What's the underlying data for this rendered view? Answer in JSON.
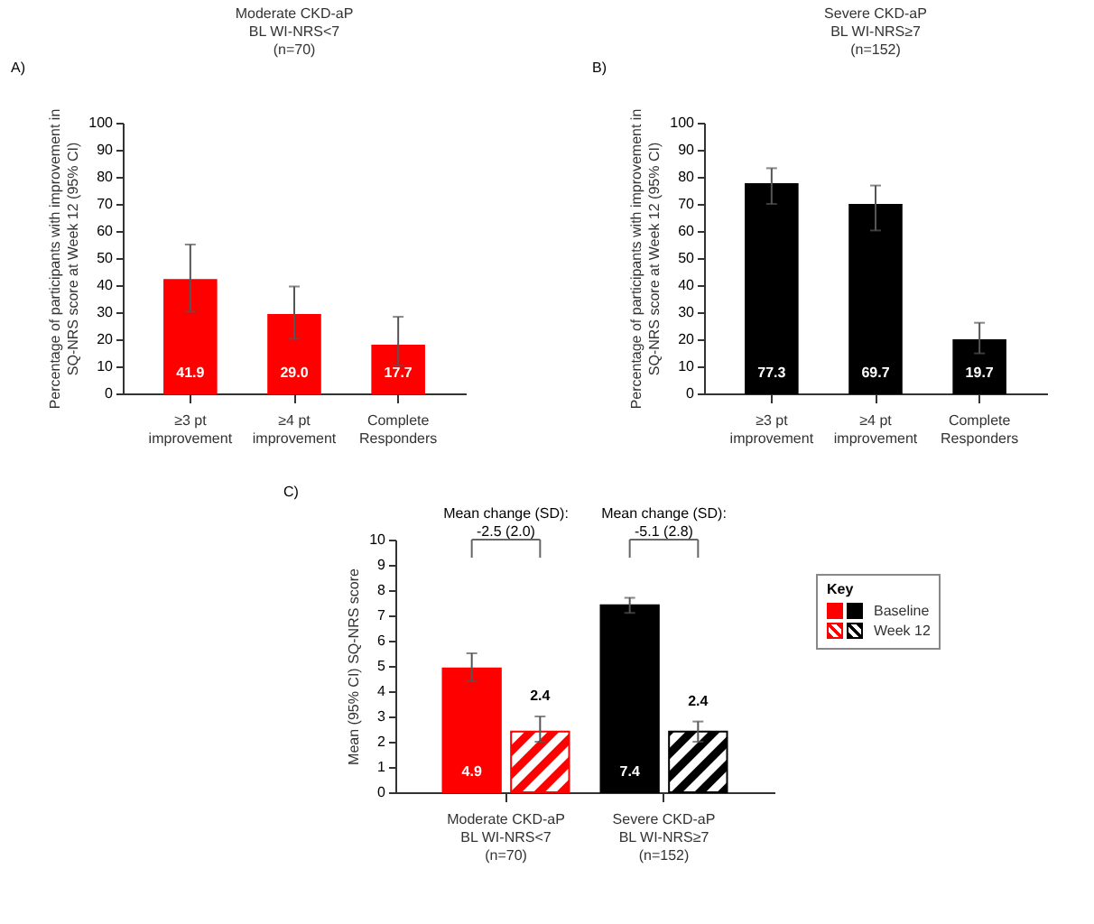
{
  "chart_data": [
    {
      "type": "bar",
      "title": "Moderate CKD-aP\nBL WI-NRS<7\n(n=70)",
      "ylabel": "Percentage of participants with improvement in\nSQ-NRS score at Week 12 (95% CI)",
      "categories": [
        "≥3 pt\nimprovement",
        "≥4 pt\nimprovement",
        "Complete\nResponders"
      ],
      "values": [
        41.9,
        29.0,
        17.7
      ],
      "color": "#ff0000",
      "errors": [
        [
          30.2,
          55.0
        ],
        [
          20.2,
          39.5
        ],
        [
          10.2,
          28.3
        ]
      ],
      "value_labels": [
        "41.9",
        "29.0",
        "17.7"
      ],
      "ylim": [
        0,
        100
      ],
      "yticks": [
        0,
        10,
        20,
        30,
        40,
        50,
        60,
        70,
        80,
        90,
        100
      ],
      "annotations": [
        "A)"
      ]
    },
    {
      "type": "bar",
      "title": "Severe CKD-aP\nBL WI-NRS≥7\n(n=152)",
      "ylabel": "Percentage of participants with improvement in\nSQ-NRS score at Week 12 (95% CI)",
      "categories": [
        "≥3 pt\nimprovement",
        "≥4 pt\nimprovement",
        "Complete\nResponders"
      ],
      "values": [
        77.3,
        69.7,
        19.7
      ],
      "color": "#000000",
      "errors": [
        [
          70.0,
          83.2
        ],
        [
          60.2,
          76.8
        ],
        [
          14.8,
          26.1
        ]
      ],
      "value_labels": [
        "77.3",
        "69.7",
        "19.7"
      ],
      "ylim": [
        0,
        100
      ],
      "yticks": [
        0,
        10,
        20,
        30,
        40,
        50,
        60,
        70,
        80,
        90,
        100
      ],
      "annotations": [
        "B)"
      ]
    },
    {
      "type": "bar",
      "ylabel": "Mean (95% CI) SQ-NRS score",
      "categories": [
        "Moderate CKD-aP\nBL WI-NRS<7\n(n=70)",
        "Severe CKD-aP\nBL WI-NRS≥7\n(n=152)"
      ],
      "legend": "right",
      "legend_title": "Key",
      "series": [
        {
          "name": "Baseline",
          "colors": [
            "#ff0000",
            "#000000"
          ],
          "values": [
            4.9,
            7.4
          ],
          "errors": [
            [
              4.4,
              5.5
            ],
            [
              7.1,
              7.7
            ]
          ],
          "value_labels": [
            "4.9",
            "7.4"
          ]
        },
        {
          "name": "Week 12",
          "colors": [
            "#ff0000",
            "#000000"
          ],
          "values": [
            2.4,
            2.4
          ],
          "errors": [
            [
              2.0,
              3.0
            ],
            [
              2.0,
              2.8
            ]
          ],
          "value_labels": [
            "2.4",
            "2.4"
          ]
        }
      ],
      "ylim": [
        0,
        10
      ],
      "yticks": [
        0,
        1,
        2,
        3,
        4,
        5,
        6,
        7,
        8,
        9,
        10
      ],
      "annotations": [
        "C)",
        "Mean change (SD):\n-2.5 (2.0)",
        "Mean change (SD):\n-5.1 (2.8)"
      ]
    }
  ]
}
